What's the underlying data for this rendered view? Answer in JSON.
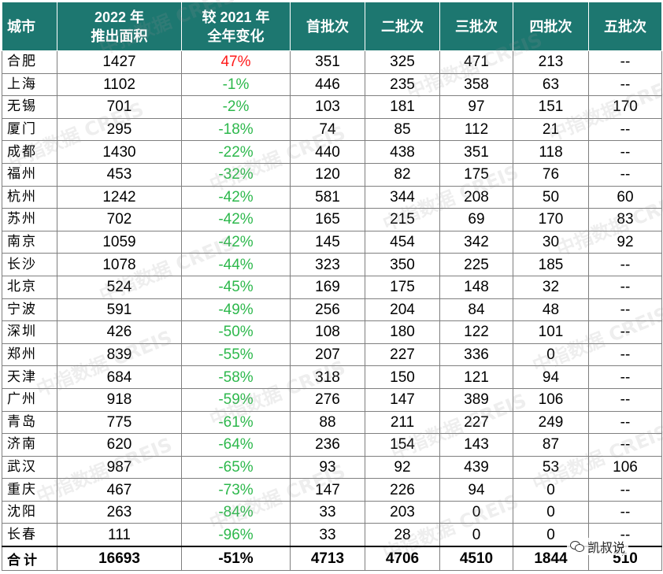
{
  "header": [
    "城市",
    "2022年推出面积",
    "较2021年全年变化",
    "首批次",
    "二批次",
    "三批次",
    "四批次",
    "五批次"
  ],
  "header_lines": [
    [
      "城市"
    ],
    [
      "2022 年",
      "推出面积"
    ],
    [
      "较 2021 年",
      "全年变化"
    ],
    [
      "首批次"
    ],
    [
      "二批次"
    ],
    [
      "三批次"
    ],
    [
      "四批次"
    ],
    [
      "五批次"
    ]
  ],
  "rows": [
    {
      "city": "合肥",
      "area": "1427",
      "change": "47%",
      "b1": "351",
      "b2": "325",
      "b3": "471",
      "b4": "213",
      "b5": "--"
    },
    {
      "city": "上海",
      "area": "1102",
      "change": "-1%",
      "b1": "446",
      "b2": "235",
      "b3": "358",
      "b4": "63",
      "b5": "--"
    },
    {
      "city": "无锡",
      "area": "701",
      "change": "-2%",
      "b1": "103",
      "b2": "181",
      "b3": "97",
      "b4": "151",
      "b5": "170"
    },
    {
      "city": "厦门",
      "area": "295",
      "change": "-18%",
      "b1": "74",
      "b2": "85",
      "b3": "112",
      "b4": "21",
      "b5": "--"
    },
    {
      "city": "成都",
      "area": "1430",
      "change": "-22%",
      "b1": "440",
      "b2": "438",
      "b3": "351",
      "b4": "118",
      "b5": "--"
    },
    {
      "city": "福州",
      "area": "453",
      "change": "-32%",
      "b1": "120",
      "b2": "82",
      "b3": "175",
      "b4": "76",
      "b5": "--"
    },
    {
      "city": "杭州",
      "area": "1242",
      "change": "-42%",
      "b1": "581",
      "b2": "344",
      "b3": "208",
      "b4": "50",
      "b5": "60"
    },
    {
      "city": "苏州",
      "area": "702",
      "change": "-42%",
      "b1": "165",
      "b2": "215",
      "b3": "69",
      "b4": "170",
      "b5": "83"
    },
    {
      "city": "南京",
      "area": "1059",
      "change": "-42%",
      "b1": "145",
      "b2": "454",
      "b3": "342",
      "b4": "30",
      "b5": "92"
    },
    {
      "city": "长沙",
      "area": "1078",
      "change": "-44%",
      "b1": "323",
      "b2": "350",
      "b3": "225",
      "b4": "185",
      "b5": "--"
    },
    {
      "city": "北京",
      "area": "524",
      "change": "-45%",
      "b1": "169",
      "b2": "175",
      "b3": "148",
      "b4": "32",
      "b5": "--"
    },
    {
      "city": "宁波",
      "area": "591",
      "change": "-49%",
      "b1": "256",
      "b2": "204",
      "b3": "84",
      "b4": "48",
      "b5": "--"
    },
    {
      "city": "深圳",
      "area": "426",
      "change": "-50%",
      "b1": "108",
      "b2": "180",
      "b3": "122",
      "b4": "101",
      "b5": "--"
    },
    {
      "city": "郑州",
      "area": "839",
      "change": "-55%",
      "b1": "207",
      "b2": "227",
      "b3": "336",
      "b4": "0",
      "b5": "--"
    },
    {
      "city": "天津",
      "area": "684",
      "change": "-58%",
      "b1": "318",
      "b2": "150",
      "b3": "121",
      "b4": "94",
      "b5": "--"
    },
    {
      "city": "广州",
      "area": "918",
      "change": "-59%",
      "b1": "276",
      "b2": "147",
      "b3": "389",
      "b4": "106",
      "b5": "--"
    },
    {
      "city": "青岛",
      "area": "775",
      "change": "-61%",
      "b1": "88",
      "b2": "211",
      "b3": "227",
      "b4": "249",
      "b5": "--"
    },
    {
      "city": "济南",
      "area": "620",
      "change": "-64%",
      "b1": "236",
      "b2": "154",
      "b3": "143",
      "b4": "87",
      "b5": "--"
    },
    {
      "city": "武汉",
      "area": "987",
      "change": "-65%",
      "b1": "93",
      "b2": "92",
      "b3": "439",
      "b4": "53",
      "b5": "106"
    },
    {
      "city": "重庆",
      "area": "467",
      "change": "-73%",
      "b1": "147",
      "b2": "226",
      "b3": "94",
      "b4": "0",
      "b5": "--"
    },
    {
      "city": "沈阳",
      "area": "263",
      "change": "-84%",
      "b1": "33",
      "b2": "203",
      "b3": "0",
      "b4": "0",
      "b5": "--"
    },
    {
      "city": "长春",
      "area": "111",
      "change": "-96%",
      "b1": "33",
      "b2": "28",
      "b3": "0",
      "b4": "0",
      "b5": "--"
    }
  ],
  "total": {
    "city": "合计",
    "area": "16693",
    "change": "-51%",
    "b1": "4713",
    "b2": "4706",
    "b3": "4510",
    "b4": "1844",
    "b5": "510"
  },
  "watermark": "中指数据 CREIS",
  "brand": {
    "name": "凯叔说",
    "icon": "wechat-icon"
  },
  "colors": {
    "header_bg": "#1d7770",
    "positive": "#ff1a1a",
    "negative": "#2db84c"
  }
}
